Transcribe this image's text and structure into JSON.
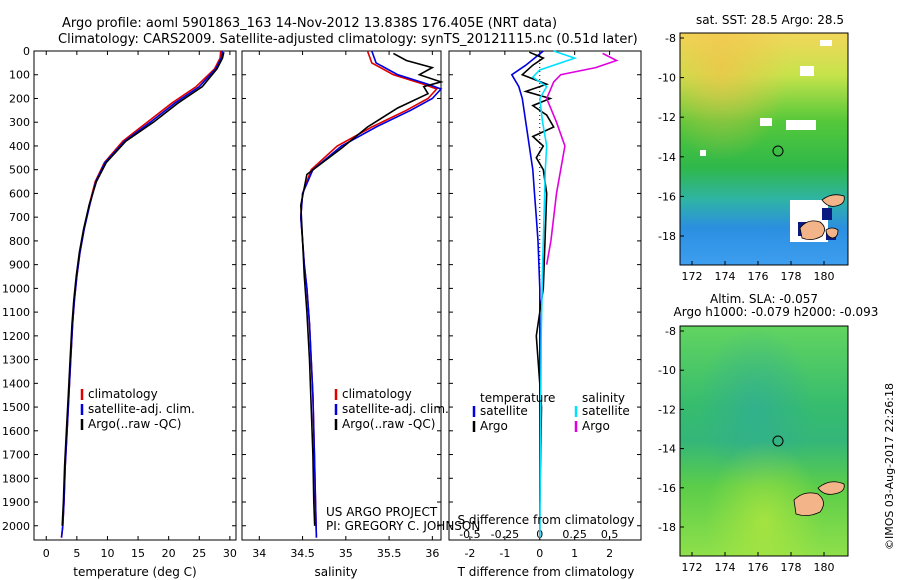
{
  "header": {
    "title_line1": "Argo profile: aoml 5901863_163 14-Nov-2012 13.838S 176.405E (NRT data)",
    "title_line2": "Climatology: CARS2009. Satellite-adjusted climatology: synTS_20121115.nc (0.51d later)"
  },
  "credits": {
    "project": "US ARGO PROJECT",
    "pi": "PI: GREGORY C. JOHNSON",
    "imos": "©IMOS 03-Aug-2017 22:26:18"
  },
  "colors": {
    "climatology": "#e00000",
    "satellite": "#0000e0",
    "argo": "#000000",
    "salinity_satellite": "#00e0ff",
    "salinity_argo": "#e000e0"
  },
  "depth_ticks": [
    0,
    100,
    200,
    300,
    400,
    500,
    600,
    700,
    800,
    900,
    1000,
    1100,
    1200,
    1300,
    1400,
    1500,
    1600,
    1700,
    1800,
    1900,
    2000
  ],
  "chart_data": [
    {
      "type": "line",
      "id": "temperature",
      "xlabel": "temperature (deg C)",
      "xlim": [
        -2,
        31
      ],
      "ylim": [
        2060,
        0
      ],
      "xticks": [
        0,
        5,
        10,
        15,
        20,
        25,
        30
      ],
      "legend": [
        "climatology",
        "satellite-adj. clim.",
        "Argo(..raw -QC)"
      ],
      "series": [
        {
          "name": "climatology",
          "color": "#e00000",
          "x": [
            28.5,
            28.4,
            27.5,
            24.5,
            20.5,
            16.5,
            12.5,
            9.5,
            8.0,
            7.0,
            6.2,
            5.5,
            5.0,
            4.6,
            4.3,
            4.0,
            3.7,
            3.4,
            3.1,
            2.9,
            2.7,
            2.5
          ],
          "y": [
            0,
            30,
            75,
            150,
            220,
            300,
            380,
            470,
            550,
            650,
            750,
            850,
            950,
            1050,
            1150,
            1300,
            1450,
            1600,
            1750,
            1900,
            2000,
            2050
          ]
        },
        {
          "name": "satellite-adj. clim.",
          "color": "#0000e0",
          "x": [
            28.8,
            28.6,
            27.7,
            25.0,
            21.0,
            17.0,
            12.8,
            9.6,
            8.1,
            7.1,
            6.2,
            5.5,
            5.0,
            4.6,
            4.3,
            4.0,
            3.7,
            3.4,
            3.1,
            2.9,
            2.7,
            2.5
          ],
          "y": [
            0,
            30,
            75,
            150,
            220,
            300,
            380,
            470,
            550,
            650,
            750,
            850,
            950,
            1050,
            1150,
            1300,
            1450,
            1600,
            1750,
            1900,
            2000,
            2050
          ]
        },
        {
          "name": "Argo(..raw -QC)",
          "color": "#000000",
          "x": [
            29.0,
            28.8,
            27.9,
            25.5,
            21.5,
            17.5,
            13.0,
            9.8,
            8.2,
            7.0,
            6.1,
            5.4,
            4.9,
            4.5,
            4.2,
            3.9,
            3.6,
            3.3,
            3.0,
            2.8,
            2.6
          ],
          "y": [
            5,
            30,
            75,
            150,
            220,
            300,
            380,
            470,
            550,
            650,
            750,
            850,
            950,
            1050,
            1150,
            1300,
            1450,
            1600,
            1750,
            1900,
            2000
          ]
        }
      ]
    },
    {
      "type": "line",
      "id": "salinity",
      "xlabel": "salinity",
      "xlim": [
        33.8,
        36.1
      ],
      "ylim": [
        2060,
        0
      ],
      "xticks": [
        34,
        34.5,
        35,
        35.5,
        36
      ],
      "xticklabels": [
        "34",
        "34.5",
        "35",
        "35.5",
        "36"
      ],
      "legend": [
        "climatology",
        "satellite-adj. clim.",
        "Argo(..raw -QC)"
      ],
      "series": [
        {
          "name": "climatology",
          "color": "#e00000",
          "x": [
            35.25,
            35.3,
            35.55,
            35.9,
            36.05,
            35.95,
            35.7,
            35.3,
            34.9,
            34.6,
            34.5,
            34.48,
            34.5,
            34.52,
            34.55,
            34.58,
            34.6,
            34.62,
            34.63,
            34.64,
            34.65,
            34.66
          ],
          "y": [
            0,
            50,
            100,
            140,
            160,
            200,
            250,
            320,
            400,
            500,
            600,
            700,
            800,
            900,
            1000,
            1150,
            1300,
            1450,
            1600,
            1750,
            1900,
            2050
          ]
        },
        {
          "name": "satellite-adj. clim.",
          "color": "#0000e0",
          "x": [
            35.3,
            35.35,
            35.6,
            35.95,
            36.1,
            36.0,
            35.75,
            35.35,
            34.95,
            34.62,
            34.5,
            34.48,
            34.5,
            34.52,
            34.55,
            34.58,
            34.6,
            34.62,
            34.63,
            34.64,
            34.65,
            34.66
          ],
          "y": [
            0,
            50,
            100,
            140,
            160,
            200,
            250,
            320,
            400,
            500,
            600,
            700,
            800,
            900,
            1000,
            1150,
            1300,
            1450,
            1600,
            1750,
            1900,
            2050
          ]
        },
        {
          "name": "Argo(..raw -QC)",
          "color": "#000000",
          "x": [
            35.55,
            35.7,
            36.0,
            35.85,
            36.1,
            35.9,
            35.95,
            35.6,
            35.25,
            34.95,
            34.55,
            34.48,
            34.5,
            34.52,
            34.55,
            34.58,
            34.6,
            34.62,
            34.63,
            34.64
          ],
          "y": [
            10,
            40,
            70,
            100,
            130,
            150,
            180,
            240,
            320,
            410,
            520,
            650,
            800,
            950,
            1100,
            1300,
            1500,
            1700,
            1900,
            2000
          ]
        }
      ]
    },
    {
      "type": "line",
      "id": "differences",
      "xlabel": "T difference from climatology",
      "xlabel_top": "S difference from climatology",
      "xlim": [
        -2.6,
        2.9
      ],
      "ylim": [
        2060,
        0
      ],
      "xticks": [
        -2,
        -1,
        0,
        1,
        2
      ],
      "top_ticks": [
        -0.5,
        -0.25,
        0,
        0.25,
        0.5
      ],
      "top_ticklabels": [
        "-0.5",
        "-0.25",
        "0",
        "0.25",
        "0.5"
      ],
      "legend_left_title": "temperature",
      "legend_right_title": "salinity",
      "legend_left": [
        "satellite",
        "Argo"
      ],
      "legend_right": [
        "satellite",
        "Argo"
      ],
      "series": [
        {
          "name": "temperature satellite",
          "color": "#0000e0",
          "scale": "T",
          "x": [
            0.1,
            -0.4,
            -0.8,
            -0.6,
            -0.5,
            -0.4,
            -0.3,
            -0.2,
            -0.15,
            -0.1,
            -0.05,
            0,
            0,
            0,
            0,
            0,
            0
          ],
          "y": [
            0,
            60,
            100,
            150,
            200,
            300,
            400,
            500,
            600,
            700,
            800,
            1000,
            1200,
            1500,
            1700,
            1900,
            2050
          ]
        },
        {
          "name": "temperature Argo",
          "color": "#000000",
          "scale": "T",
          "x": [
            -0.3,
            0.1,
            -0.2,
            -0.5,
            0.2,
            -0.4,
            0.3,
            -0.2,
            0.2,
            0.4,
            -0.2,
            0.1,
            -0.1,
            0.1,
            0.2,
            0.15,
            0.1,
            -0.1,
            0.05,
            0
          ],
          "y": [
            5,
            30,
            60,
            100,
            140,
            170,
            200,
            230,
            270,
            320,
            360,
            400,
            450,
            500,
            600,
            800,
            1000,
            1200,
            1500,
            1900
          ]
        },
        {
          "name": "salinity satellite",
          "color": "#00e0ff",
          "scale": "S",
          "x": [
            0.1,
            0.25,
            0.0,
            -0.05,
            0.05,
            0.0,
            0.02,
            0.05,
            0.04,
            0.03,
            0.02,
            0.01,
            0.0
          ],
          "y": [
            0,
            30,
            80,
            110,
            150,
            200,
            300,
            400,
            500,
            700,
            900,
            1200,
            2050
          ]
        },
        {
          "name": "salinity Argo",
          "color": "#e000e0",
          "scale": "S",
          "x": [
            0.45,
            0.55,
            0.4,
            0.15,
            0.1,
            0.05,
            0.12,
            0.18,
            0.15,
            0.12,
            0.1,
            0.08,
            0.05
          ],
          "y": [
            10,
            40,
            70,
            100,
            130,
            200,
            300,
            400,
            500,
            600,
            700,
            800,
            900
          ]
        }
      ]
    }
  ],
  "map_sst": {
    "title": "sat. SST: 28.5 Argo: 28.5",
    "yticks": [
      "-8",
      "-10",
      "-12",
      "-14",
      "-16",
      "-18"
    ],
    "xticks": [
      "172",
      "174",
      "176",
      "178",
      "180"
    ]
  },
  "map_sla": {
    "title_line1": "Altim. SLA: -0.057",
    "title_line2": "Argo h1000: -0.079 h2000: -0.093",
    "yticks": [
      "-8",
      "-10",
      "-12",
      "-14",
      "-16",
      "-18"
    ],
    "xticks": [
      "172",
      "174",
      "176",
      "178",
      "180"
    ]
  }
}
